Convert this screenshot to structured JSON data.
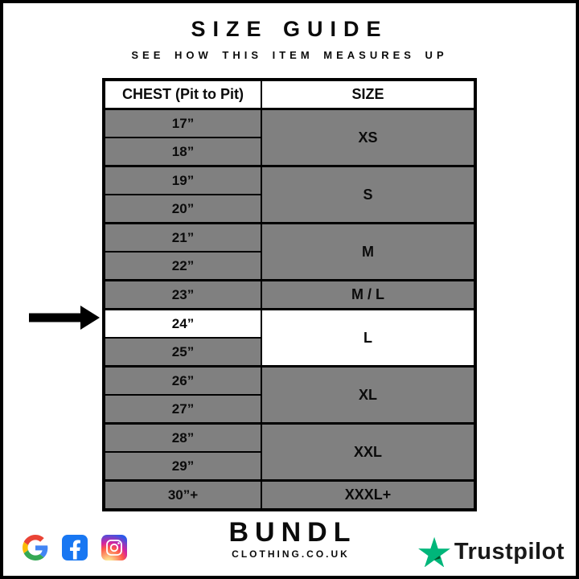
{
  "header": {
    "title": "SIZE GUIDE",
    "subtitle": "SEE HOW THIS ITEM MEASURES UP"
  },
  "table": {
    "columns": [
      "CHEST (Pit to Pit)",
      "SIZE"
    ],
    "groups": [
      {
        "size": "XS",
        "chest": [
          "17”",
          "18”"
        ],
        "highlight_size": false,
        "highlight_chest": []
      },
      {
        "size": "S",
        "chest": [
          "19”",
          "20”"
        ],
        "highlight_size": false,
        "highlight_chest": []
      },
      {
        "size": "M",
        "chest": [
          "21”",
          "22”"
        ],
        "highlight_size": false,
        "highlight_chest": []
      },
      {
        "size": "M / L",
        "chest": [
          "23”"
        ],
        "highlight_size": false,
        "highlight_chest": []
      },
      {
        "size": "L",
        "chest": [
          "24”",
          "25”"
        ],
        "highlight_size": true,
        "highlight_chest": [
          "24”"
        ]
      },
      {
        "size": "XL",
        "chest": [
          "26”",
          "27”"
        ],
        "highlight_size": false,
        "highlight_chest": []
      },
      {
        "size": "XXL",
        "chest": [
          "28”",
          "29”"
        ],
        "highlight_size": false,
        "highlight_chest": []
      },
      {
        "size": "XXXL+",
        "chest": [
          "30”+"
        ],
        "highlight_size": false,
        "highlight_chest": []
      }
    ]
  },
  "chart_data": {
    "type": "table",
    "title": "SIZE GUIDE",
    "subtitle": "SEE HOW THIS ITEM MEASURES UP",
    "columns": [
      "CHEST (Pit to Pit)",
      "SIZE"
    ],
    "rows": [
      [
        "17”",
        "XS"
      ],
      [
        "18”",
        "XS"
      ],
      [
        "19”",
        "S"
      ],
      [
        "20”",
        "S"
      ],
      [
        "21”",
        "M"
      ],
      [
        "22”",
        "M"
      ],
      [
        "23”",
        "M / L"
      ],
      [
        "24”",
        "L"
      ],
      [
        "25”",
        "L"
      ],
      [
        "26”",
        "XL"
      ],
      [
        "27”",
        "XL"
      ],
      [
        "28”",
        "XXL"
      ],
      [
        "29”",
        "XXL"
      ],
      [
        "30”+",
        "XXXL+"
      ]
    ],
    "highlighted_row": {
      "chest": "24”",
      "size": "L"
    },
    "annotation": "black arrow pointing at the 24” / L row"
  },
  "arrow": {
    "points_to": "24”"
  },
  "footer": {
    "brand_name": "BUNDL",
    "brand_domain": "CLOTHING.CO.UK",
    "social_icons": [
      "google-icon",
      "facebook-icon",
      "instagram-icon"
    ],
    "trustpilot_label": "Trustpilot"
  },
  "colors": {
    "row_gray": "#808080",
    "highlight_white": "#ffffff",
    "border_black": "#000000",
    "trustpilot_green": "#00B67A",
    "trustpilot_dark_green": "#005128",
    "facebook_blue": "#1877F2",
    "google_blue": "#4285F4",
    "google_red": "#EA4335",
    "google_yellow": "#FBBC05",
    "google_green": "#34A853"
  }
}
